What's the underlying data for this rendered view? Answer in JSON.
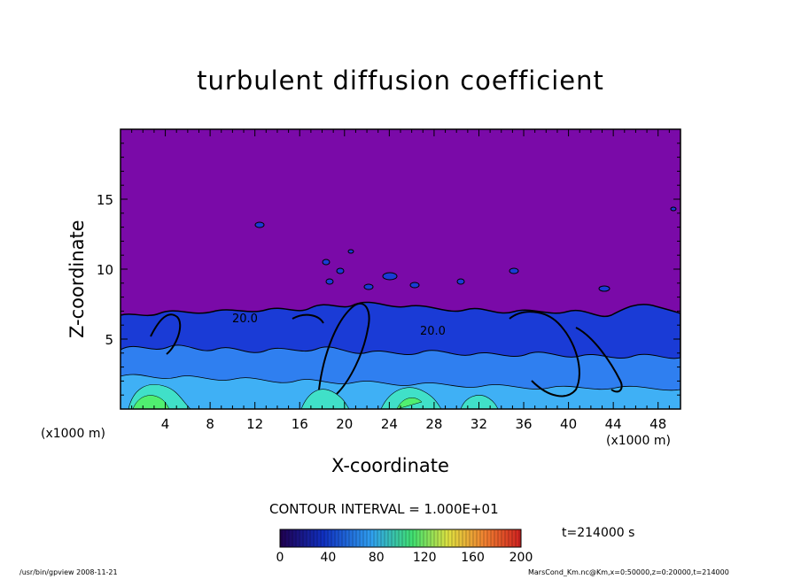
{
  "chart_data": {
    "type": "heatmap",
    "title": "turbulent diffusion coefficient",
    "xlabel": "X-coordinate",
    "ylabel": "Z-coordinate",
    "x_unit_left": "(x1000 m)",
    "x_unit_right": "(x1000 m)",
    "xlim": [
      0,
      50
    ],
    "ylim": [
      0,
      20
    ],
    "x_ticks": [
      4,
      8,
      12,
      16,
      20,
      24,
      28,
      32,
      36,
      40,
      44,
      48
    ],
    "y_ticks": [
      5,
      10,
      15
    ],
    "x_tick_labels": [
      "4",
      "8",
      "12",
      "16",
      "20",
      "24",
      "28",
      "32",
      "36",
      "40",
      "44",
      "48"
    ],
    "y_tick_labels": [
      "5",
      "10",
      "15"
    ],
    "contour_interval": "CONTOUR INTERVAL = 1.000E+01",
    "contour_labels": [
      "20.0",
      "20.0"
    ],
    "colorbar": {
      "range": [
        0,
        200
      ],
      "ticks": [
        0,
        40,
        80,
        120,
        160,
        200
      ],
      "tick_labels": [
        "0",
        "40",
        "80",
        "120",
        "160",
        "200"
      ]
    },
    "time_label": "t=214000 s",
    "background_color": "#7a0aa8",
    "field_colors": [
      "#1a3bd6",
      "#2f7ff0",
      "#3fb0f5",
      "#40e0c8",
      "#50ef70"
    ]
  },
  "footer": {
    "left": "/usr/bin/gpview   2008-11-21",
    "right": "MarsCond_Km.nc@Km,x=0:50000,z=0:20000,t=214000"
  }
}
